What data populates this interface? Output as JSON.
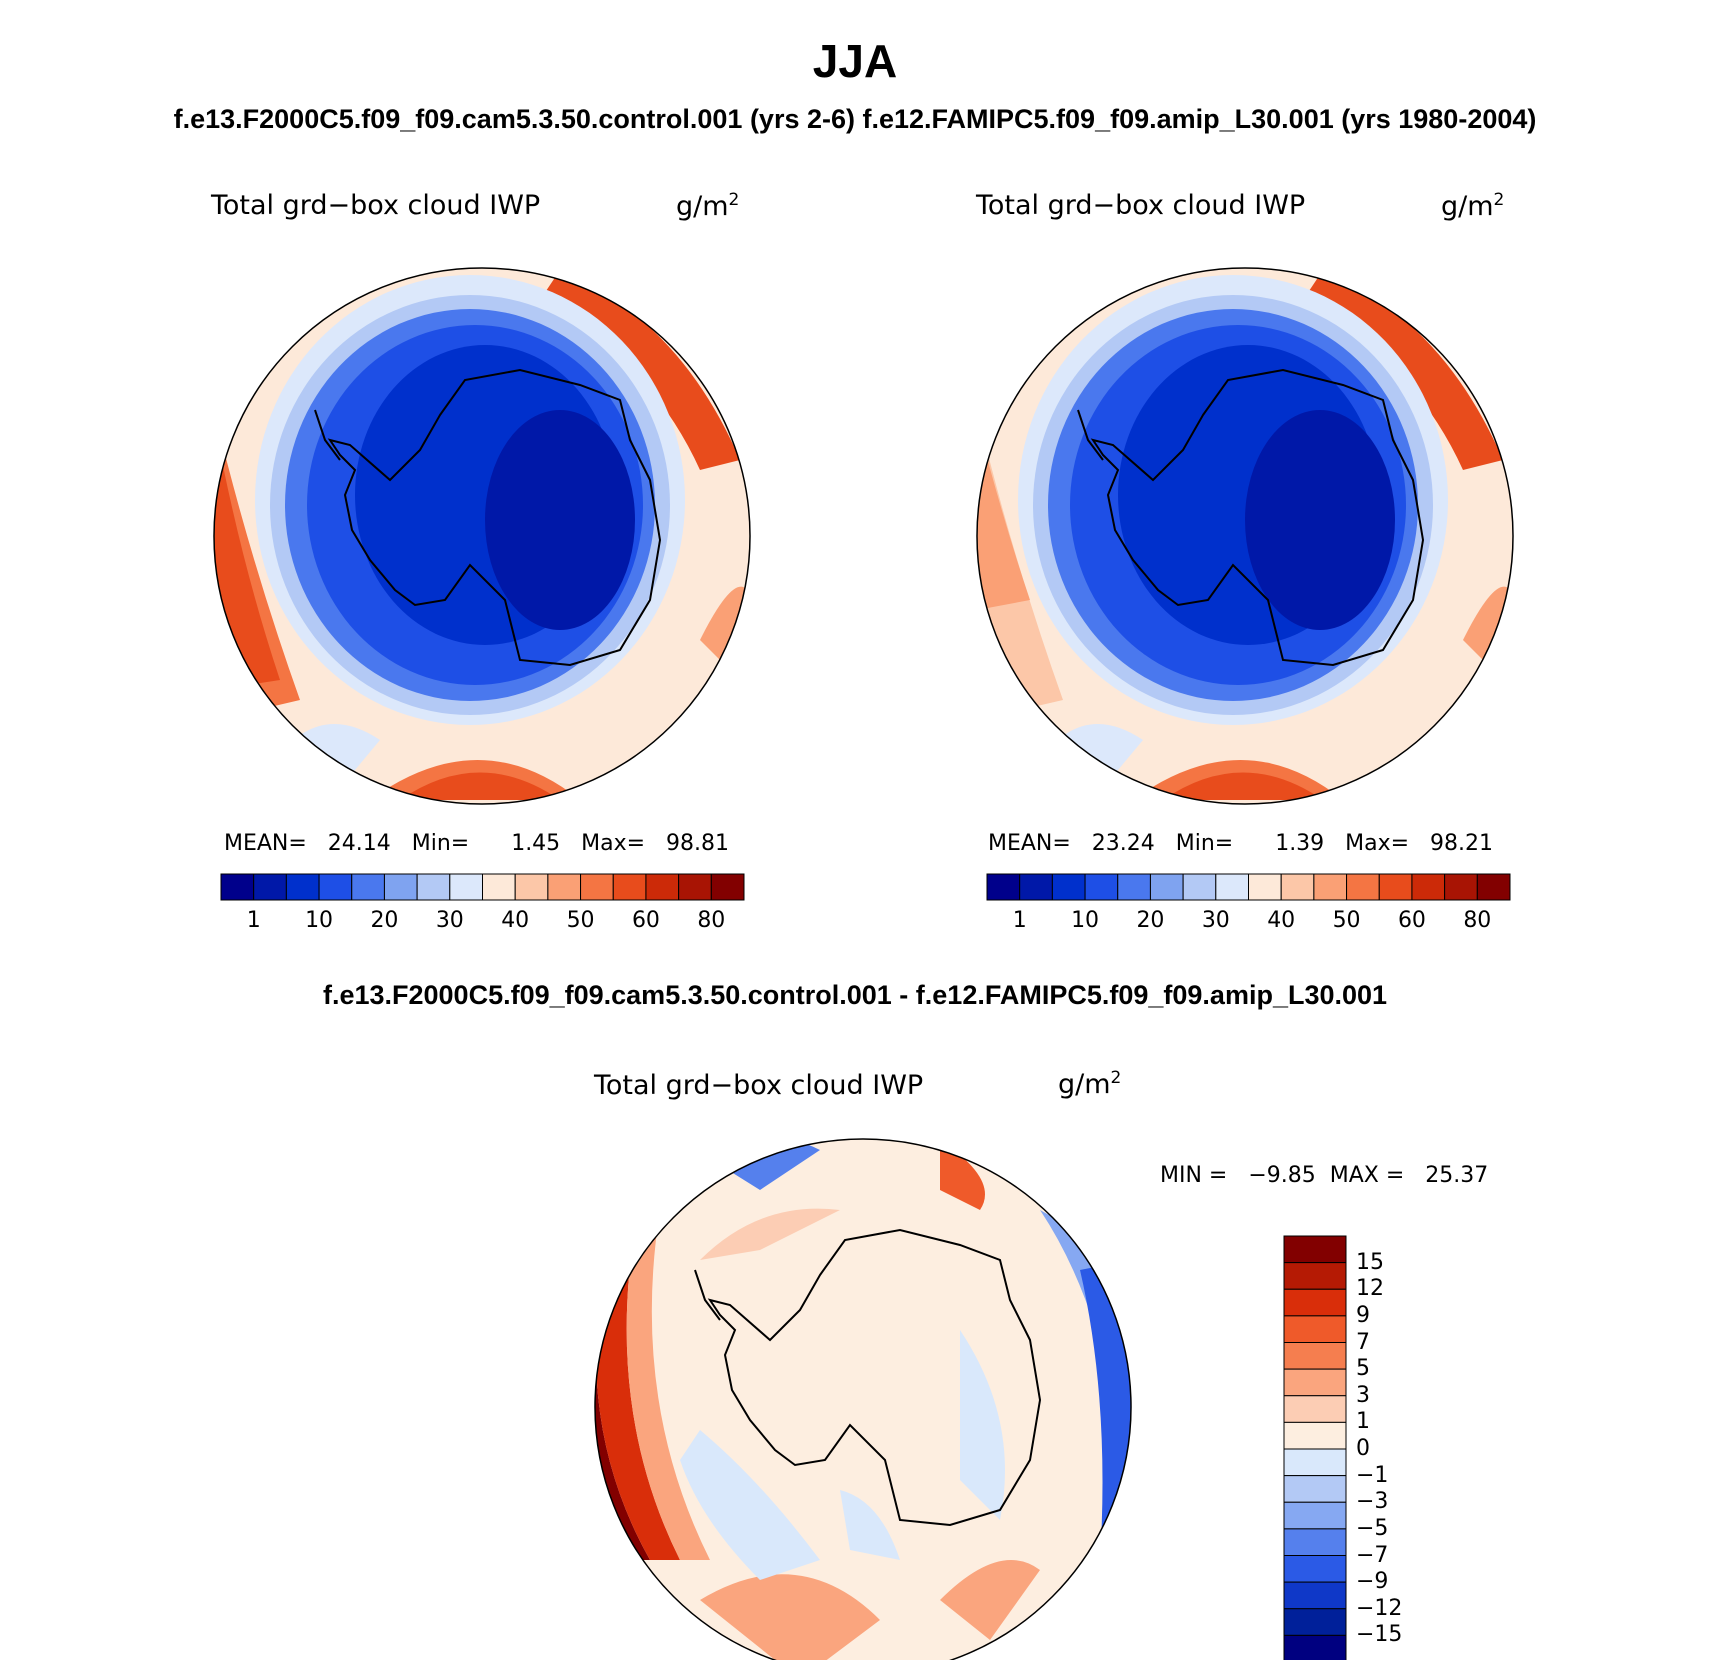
{
  "title": "JJA",
  "subtitle_top": "f.e13.F2000C5.f09_f09.cam5.3.50.control.001 (yrs 2-6)  f.e12.FAMIPC5.f09_f09.amip_L30.001 (yrs 1980-2004)",
  "subtitle_diff": "f.e13.F2000C5.f09_f09.cam5.3.50.control.001 - f.e12.FAMIPC5.f09_f09.amip_L30.001",
  "panels": [
    {
      "id": "control",
      "variable": "Total grd−box cloud IWP",
      "units_base": "g/m",
      "units_exp": "2",
      "stats_text": "MEAN=   24.14   Min=      1.45   Max=   98.81"
    },
    {
      "id": "amip",
      "variable": "Total grd−box cloud IWP",
      "units_base": "g/m",
      "units_exp": "2",
      "stats_text": "MEAN=   23.24   Min=      1.39   Max=   98.21"
    },
    {
      "id": "difference",
      "variable": "Total grd−box cloud IWP",
      "units_base": "g/m",
      "units_exp": "2",
      "stats_text": "MIN =   −9.85  MAX =   25.37"
    }
  ],
  "abs_colorbar": {
    "labels": [
      "1",
      "10",
      "20",
      "30",
      "40",
      "50",
      "60",
      "80"
    ],
    "colors": [
      "#00008b",
      "#0018a8",
      "#0030cc",
      "#1e4fe6",
      "#4a78ee",
      "#7fa3f0",
      "#b3c9f5",
      "#dce8fb",
      "#fde9d9",
      "#fcc7a8",
      "#faa075",
      "#f47543",
      "#e84c1c",
      "#cc2a08",
      "#a81404",
      "#820000"
    ]
  },
  "diff_colorbar": {
    "labels": [
      "15",
      "12",
      "9",
      "7",
      "5",
      "3",
      "1",
      "0",
      "−1",
      "−3",
      "−5",
      "−7",
      "−9",
      "−12",
      "−15"
    ],
    "colors": [
      "#820000",
      "#b51a04",
      "#d92e0a",
      "#ef5a2a",
      "#f57e4f",
      "#faa57e",
      "#fccdb4",
      "#fdeee0",
      "#d9e8fb",
      "#b3c9f5",
      "#86a8f2",
      "#5580ed",
      "#2b5ae6",
      "#0f38c8",
      "#00209a",
      "#000080"
    ]
  }
}
